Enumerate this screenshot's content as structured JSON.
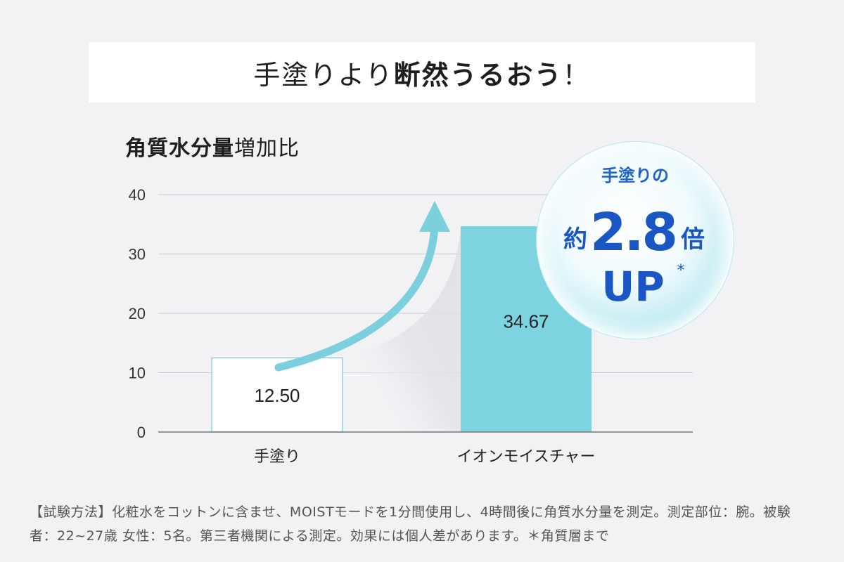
{
  "headline": {
    "normal": "手塗りより",
    "bold": "断然うるおう",
    "tail": "！"
  },
  "chart_title": {
    "bold": "角質水分量",
    "normal": "増加比"
  },
  "badge": {
    "line1": "手塗りの",
    "prefix": "約",
    "number": "2.8",
    "suffix": "倍",
    "up": "UP",
    "asterisk": "*"
  },
  "footnote": "【試験方法】化粧水をコットンに含ませ、MOISTモードを1分間使用し、4時間後に角質水分量を測定。測定部位：腕。被験者：22~27歳 女性：5名。第三者機関による測定。効果には個人差があります。＊角質層まで",
  "colors": {
    "background": "#f2f2f4",
    "bar_hand": "#ffffff",
    "bar_hand_border": "#8fd3e0",
    "bar_device": "#7dd3e0",
    "arrow": "#7ccfdc",
    "badge_text": "#1a57c4"
  },
  "chart_data": {
    "type": "bar",
    "categories": [
      "手塗り",
      "イオンモイスチャー"
    ],
    "values": [
      12.5,
      34.67
    ],
    "value_labels": [
      "12.50",
      "34.67"
    ],
    "ylim": [
      0,
      40
    ],
    "yticks": [
      0,
      10,
      20,
      30,
      40
    ],
    "ytick_labels": [
      "0",
      "10",
      "20",
      "30",
      "40"
    ],
    "grid": true,
    "title": "角質水分量増加比",
    "xlabel": "",
    "ylabel": ""
  }
}
